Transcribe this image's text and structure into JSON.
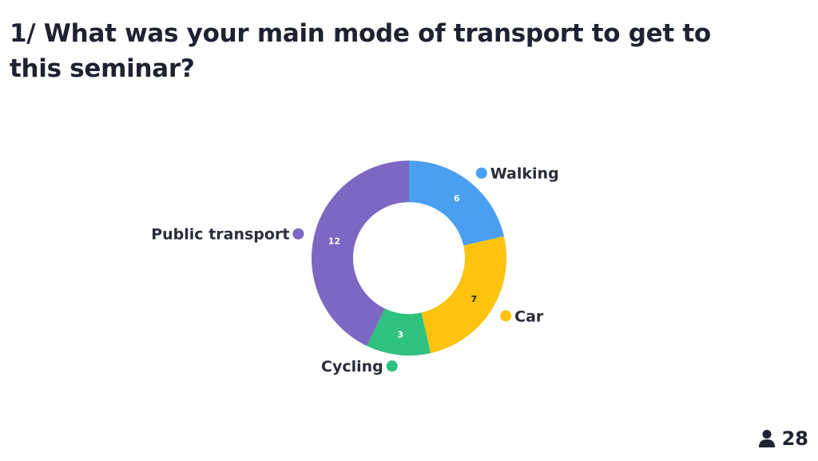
{
  "question": {
    "title": "1/ What was your main mode of transport to get to this seminar?"
  },
  "chart_data": {
    "type": "pie",
    "donut": true,
    "title": "",
    "slices": [
      {
        "label": "Walking",
        "value": 6,
        "color": "#4b9ff0",
        "value_text_color": "#ffffff",
        "legend_side": "right"
      },
      {
        "label": "Car",
        "value": 7,
        "color": "#fdc30e",
        "value_text_color": "#1f2230",
        "legend_side": "right"
      },
      {
        "label": "Cycling",
        "value": 3,
        "color": "#2fc17f",
        "value_text_color": "#ffffff",
        "legend_side": "left"
      },
      {
        "label": "Public transport",
        "value": 12,
        "color": "#7c68c2",
        "value_text_color": "#ffffff",
        "legend_side": "left"
      }
    ]
  },
  "footer": {
    "participant_count": "28",
    "participant_icon": "person-icon"
  }
}
